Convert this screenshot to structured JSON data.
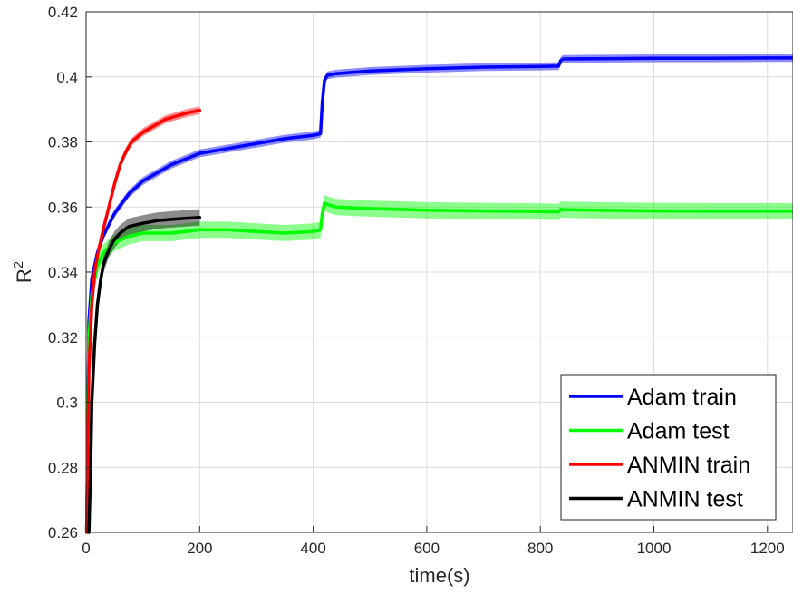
{
  "chart_data": {
    "type": "line",
    "xlabel": "time(s)",
    "ylabel": "R",
    "ylabel_superscript": "2",
    "xlim": [
      0,
      1245
    ],
    "ylim": [
      0.26,
      0.42
    ],
    "xticks": [
      0,
      200,
      400,
      600,
      800,
      1000,
      1200
    ],
    "xtick_labels": [
      "0",
      "200",
      "400",
      "600",
      "800",
      "1000",
      "1200"
    ],
    "yticks": [
      0.26,
      0.28,
      0.3,
      0.32,
      0.34,
      0.36,
      0.38,
      0.4,
      0.42
    ],
    "ytick_labels": [
      "0.26",
      "0.28",
      "0.3",
      "0.32",
      "0.34",
      "0.36",
      "0.38",
      "0.4",
      "0.42"
    ],
    "grid": true,
    "legend_position": "bottom-right",
    "series": [
      {
        "name": "Adam train",
        "color": "#0000ff",
        "band": 0.0012,
        "x": [
          1,
          5,
          10,
          20,
          30,
          50,
          75,
          100,
          150,
          200,
          250,
          300,
          350,
          400,
          413,
          416,
          420,
          425,
          440,
          500,
          600,
          700,
          800,
          832,
          836,
          840,
          900,
          1000,
          1100,
          1200,
          1245
        ],
        "y": [
          0.26,
          0.325,
          0.338,
          0.346,
          0.351,
          0.358,
          0.364,
          0.368,
          0.373,
          0.3765,
          0.378,
          0.3795,
          0.381,
          0.382,
          0.3825,
          0.392,
          0.399,
          0.4005,
          0.401,
          0.4018,
          0.4025,
          0.403,
          0.4032,
          0.4033,
          0.405,
          0.4055,
          0.4056,
          0.4057,
          0.4057,
          0.4058,
          0.4058
        ]
      },
      {
        "name": "Adam test",
        "color": "#00ff00",
        "band": 0.0025,
        "x": [
          1,
          5,
          10,
          20,
          30,
          50,
          75,
          100,
          150,
          200,
          250,
          300,
          350,
          400,
          413,
          416,
          420,
          425,
          440,
          500,
          600,
          700,
          800,
          832,
          836,
          840,
          900,
          1000,
          1100,
          1200,
          1245
        ],
        "y": [
          0.26,
          0.32,
          0.333,
          0.342,
          0.346,
          0.349,
          0.351,
          0.352,
          0.352,
          0.353,
          0.353,
          0.3525,
          0.352,
          0.3525,
          0.353,
          0.358,
          0.3612,
          0.3608,
          0.36,
          0.3595,
          0.359,
          0.3588,
          0.3586,
          0.3585,
          0.3593,
          0.3592,
          0.359,
          0.3588,
          0.3587,
          0.3587,
          0.3587
        ]
      },
      {
        "name": "ANMIN train",
        "color": "#ff0000",
        "band": 0.0012,
        "x": [
          1,
          5,
          10,
          15,
          20,
          30,
          40,
          50,
          60,
          70,
          80,
          90,
          100,
          120,
          140,
          160,
          180,
          200
        ],
        "y": [
          0.26,
          0.31,
          0.33,
          0.34,
          0.345,
          0.353,
          0.36,
          0.367,
          0.373,
          0.377,
          0.38,
          0.3815,
          0.383,
          0.385,
          0.387,
          0.388,
          0.389,
          0.3897
        ]
      },
      {
        "name": "ANMIN test",
        "color": "#000000",
        "band": 0.0025,
        "x": [
          5,
          8,
          10,
          15,
          20,
          25,
          30,
          40,
          50,
          60,
          75,
          100,
          125,
          150,
          175,
          200
        ],
        "y": [
          0.26,
          0.28,
          0.3,
          0.318,
          0.33,
          0.337,
          0.342,
          0.347,
          0.35,
          0.352,
          0.354,
          0.355,
          0.3558,
          0.3562,
          0.3565,
          0.3568
        ]
      }
    ]
  }
}
